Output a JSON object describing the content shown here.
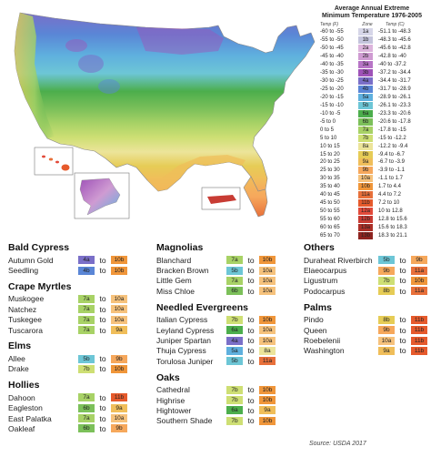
{
  "legend": {
    "title_line1": "Average Annual Extreme",
    "title_line2": "Minimum Temperature 1976-2005",
    "col_temp_f": "Temp (F)",
    "col_zone": "Zone",
    "col_temp_c": "Temp (C)",
    "rows": [
      {
        "f": "-60 to -55",
        "zone": "1a",
        "c": "-51.1 to -48.3",
        "color": "#d6d6e8"
      },
      {
        "f": "-55 to -50",
        "zone": "1b",
        "c": "-48.3 to -45.6",
        "color": "#c4c4dc"
      },
      {
        "f": "-50 to -45",
        "zone": "2a",
        "c": "-45.6 to -42.8",
        "color": "#dcb4dc"
      },
      {
        "f": "-45 to -40",
        "zone": "2b",
        "c": "-42.8 to -40",
        "color": "#cf9bd2"
      },
      {
        "f": "-40 to -35",
        "zone": "3a",
        "c": "-40 to -37.2",
        "color": "#b774c6"
      },
      {
        "f": "-35 to -30",
        "zone": "3b",
        "c": "-37.2 to -34.4",
        "color": "#9f52b8"
      },
      {
        "f": "-30 to -25",
        "zone": "4a",
        "c": "-34.4 to -31.7",
        "color": "#7a6fc8"
      },
      {
        "f": "-25 to -20",
        "zone": "4b",
        "c": "-31.7 to -28.9",
        "color": "#5a86d6"
      },
      {
        "f": "-20 to -15",
        "zone": "5a",
        "c": "-28.9 to -26.1",
        "color": "#5fb0de"
      },
      {
        "f": "-15 to -10",
        "zone": "5b",
        "c": "-26.1 to -23.3",
        "color": "#6dc6d6"
      },
      {
        "f": "-10 to -5",
        "zone": "6a",
        "c": "-23.3 to -20.6",
        "color": "#4cae4c"
      },
      {
        "f": "-5 to 0",
        "zone": "6b",
        "c": "-20.6 to -17.8",
        "color": "#7cc05a"
      },
      {
        "f": "0 to 5",
        "zone": "7a",
        "c": "-17.8 to -15",
        "color": "#a8d266"
      },
      {
        "f": "5 to 10",
        "zone": "7b",
        "c": "-15 to -12.2",
        "color": "#cedf74"
      },
      {
        "f": "10 to 15",
        "zone": "8a",
        "c": "-12.2 to -9.4",
        "color": "#ece49a"
      },
      {
        "f": "15 to 20",
        "zone": "8b",
        "c": "-9.4 to -6.7",
        "color": "#e6cc56"
      },
      {
        "f": "20 to 25",
        "zone": "9a",
        "c": "-6.7 to -3.9",
        "color": "#f0be5a"
      },
      {
        "f": "25 to 30",
        "zone": "9b",
        "c": "-3.9 to -1.1",
        "color": "#f6a85c"
      },
      {
        "f": "30 to 35",
        "zone": "10a",
        "c": "-1.1 to 1.7",
        "color": "#f6c27c"
      },
      {
        "f": "35 to 40",
        "zone": "10b",
        "c": "1.7 to 4.4",
        "color": "#f0963a"
      },
      {
        "f": "40 to 45",
        "zone": "11a",
        "c": "4.4 to 7.2",
        "color": "#e8703a"
      },
      {
        "f": "45 to 50",
        "zone": "11b",
        "c": "7.2 to 10",
        "color": "#e65a2c"
      },
      {
        "f": "50 to 55",
        "zone": "12a",
        "c": "10 to 12.8",
        "color": "#e24a3a"
      },
      {
        "f": "55 to 60",
        "zone": "12b",
        "c": "12.8 to 15.6",
        "color": "#c83c34"
      },
      {
        "f": "60 to 65",
        "zone": "13a",
        "c": "15.6 to 18.3",
        "color": "#ac3028"
      },
      {
        "f": "65 to 70",
        "zone": "13b",
        "c": "18.3 to 21.1",
        "color": "#8e2420"
      }
    ]
  },
  "to_word": "to",
  "columns": [
    [
      {
        "title": "Bald Cypress",
        "plants": [
          {
            "name": "Autumn Gold",
            "from": "4a",
            "to": "10b"
          },
          {
            "name": "Seedling",
            "from": "4b",
            "to": "10b"
          }
        ]
      },
      {
        "title": "Crape Myrtles",
        "plants": [
          {
            "name": "Muskogee",
            "from": "7a",
            "to": "10a"
          },
          {
            "name": "Natchez",
            "from": "7a",
            "to": "10a"
          },
          {
            "name": "Tuskegee",
            "from": "7a",
            "to": "10a"
          },
          {
            "name": "Tuscarora",
            "from": "7a",
            "to": "9a"
          }
        ]
      },
      {
        "title": "Elms",
        "plants": [
          {
            "name": "Allee",
            "from": "5b",
            "to": "9b"
          },
          {
            "name": "Drake",
            "from": "7b",
            "to": "10b"
          }
        ]
      },
      {
        "title": "Hollies",
        "plants": [
          {
            "name": "Dahoon",
            "from": "7a",
            "to": "11b"
          },
          {
            "name": "Eagleston",
            "from": "6b",
            "to": "9a"
          },
          {
            "name": "East Palatka",
            "from": "7a",
            "to": "10a"
          },
          {
            "name": "Oakleaf",
            "from": "6b",
            "to": "9b"
          }
        ]
      }
    ],
    [
      {
        "title": "Magnolias",
        "plants": [
          {
            "name": "Blanchard",
            "from": "7a",
            "to": "10b"
          },
          {
            "name": "Bracken Brown",
            "from": "5b",
            "to": "10a"
          },
          {
            "name": "Little Gem",
            "from": "7a",
            "to": "10a"
          },
          {
            "name": "Miss Chloe",
            "from": "6b",
            "to": "10a"
          }
        ]
      },
      {
        "title": "Needled Evergreens",
        "plants": [
          {
            "name": "Italian Cypress",
            "from": "7b",
            "to": "10b"
          },
          {
            "name": "Leyland Cypress",
            "from": "6a",
            "to": "10a"
          },
          {
            "name": "Juniper Spartan",
            "from": "4a",
            "to": "10a"
          },
          {
            "name": "Thuja Cypress",
            "from": "5a",
            "to": "8a"
          },
          {
            "name": "Torulosa Juniper",
            "from": "5b",
            "to": "11a"
          }
        ]
      },
      {
        "title": "Oaks",
        "plants": [
          {
            "name": "Cathedral",
            "from": "7b",
            "to": "10b"
          },
          {
            "name": "Highrise",
            "from": "7b",
            "to": "10b"
          },
          {
            "name": "Hightower",
            "from": "6a",
            "to": "9a"
          },
          {
            "name": "Southern Shade",
            "from": "7b",
            "to": "10b"
          }
        ]
      }
    ],
    [
      {
        "title": "Others",
        "plants": [
          {
            "name": "Duraheat Riverbirch",
            "from": "5b",
            "to": "9b"
          },
          {
            "name": "Elaeocarpus",
            "from": "9b",
            "to": "11a"
          },
          {
            "name": "Ligustrum",
            "from": "7b",
            "to": "10b"
          },
          {
            "name": "Podocarpus",
            "from": "8b",
            "to": "11a"
          }
        ]
      },
      {
        "title": "Palms",
        "plants": [
          {
            "name": "Pindo",
            "from": "8b",
            "to": "11b"
          },
          {
            "name": "Queen",
            "from": "9b",
            "to": "11b"
          },
          {
            "name": "Roebelenii",
            "from": "10a",
            "to": "11b"
          },
          {
            "name": "Washington",
            "from": "9a",
            "to": "11b"
          }
        ]
      }
    ]
  ],
  "source": "Source: USDA 2017"
}
